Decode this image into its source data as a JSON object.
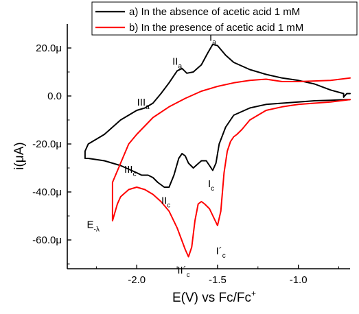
{
  "chart_data": {
    "type": "line",
    "xlabel": "E(V) vs Fc/Fc",
    "xlabel_sup": "+",
    "ylabel": "i(μA)",
    "xlim": [
      -2.43,
      -0.68
    ],
    "ylim": [
      -72,
      30
    ],
    "x_ticks": [
      -2.0,
      -1.5,
      -1.0
    ],
    "x_tick_labels": [
      "-2.0",
      "-1.5",
      "-1.0"
    ],
    "y_ticks": [
      20,
      0,
      -20,
      -40,
      -60
    ],
    "y_tick_labels": [
      "20.0μ",
      "0.0",
      "-20.0μ",
      "-40.0μ",
      "-60.0μ"
    ],
    "legend_position": "top-right",
    "series": [
      {
        "name": "a) In the absence of acetic acid 1 mM",
        "color": "#000000",
        "x": [
          -0.68,
          -0.7,
          -0.71,
          -0.72,
          -0.72,
          -0.8,
          -0.9,
          -1.0,
          -1.1,
          -1.2,
          -1.3,
          -1.4,
          -1.45,
          -1.5,
          -1.53,
          -1.56,
          -1.6,
          -1.65,
          -1.69,
          -1.72,
          -1.75,
          -1.8,
          -1.85,
          -1.9,
          -1.95,
          -2.0,
          -2.05,
          -2.1,
          -2.15,
          -2.2,
          -2.25,
          -2.3,
          -2.32,
          -2.32,
          -2.3,
          -2.2,
          -2.1,
          -2.0,
          -1.97,
          -1.93,
          -1.9,
          -1.87,
          -1.83,
          -1.8,
          -1.77,
          -1.74,
          -1.72,
          -1.7,
          -1.68,
          -1.65,
          -1.6,
          -1.57,
          -1.55,
          -1.53,
          -1.51,
          -1.49,
          -1.45,
          -1.4,
          -1.3,
          -1.2,
          -1.1,
          -1.0,
          -0.9,
          -0.8,
          -0.7,
          -0.68
        ],
        "y": [
          1.0,
          1.0,
          0.3,
          -0.5,
          1.0,
          2.5,
          5.0,
          6.5,
          7.5,
          9.0,
          11.0,
          14.0,
          17.0,
          21.0,
          21.5,
          18.0,
          13.0,
          10.0,
          9.5,
          11.5,
          10.5,
          5.5,
          1.0,
          -3.0,
          -5.0,
          -6.0,
          -8.0,
          -10.0,
          -13.0,
          -16.0,
          -18.0,
          -20.0,
          -23.0,
          -26.0,
          -26.0,
          -27.0,
          -29.0,
          -32.0,
          -33.0,
          -33.0,
          -34.0,
          -36.0,
          -38.0,
          -38.0,
          -33.0,
          -26.0,
          -24.0,
          -25.0,
          -28.0,
          -30.0,
          -27.0,
          -27.0,
          -29.0,
          -31.0,
          -28.0,
          -20.0,
          -13.0,
          -8.0,
          -5.0,
          -3.5,
          -3.0,
          -2.5,
          -2.0,
          -1.8,
          -1.5,
          -1.5
        ]
      },
      {
        "name": "b) In the presence of acetic acid 1 mM",
        "color": "#ff0000",
        "x": [
          -0.68,
          -0.8,
          -1.0,
          -1.1,
          -1.2,
          -1.3,
          -1.4,
          -1.5,
          -1.6,
          -1.7,
          -1.8,
          -1.9,
          -2.0,
          -2.05,
          -2.1,
          -2.15,
          -2.15,
          -2.12,
          -2.1,
          -2.05,
          -2.0,
          -1.95,
          -1.9,
          -1.85,
          -1.8,
          -1.75,
          -1.7,
          -1.68,
          -1.66,
          -1.64,
          -1.62,
          -1.6,
          -1.58,
          -1.55,
          -1.5,
          -1.48,
          -1.46,
          -1.44,
          -1.42,
          -1.4,
          -1.38,
          -1.35,
          -1.3,
          -1.2,
          -1.1,
          -1.0,
          -0.9,
          -0.8,
          -0.68
        ],
        "y": [
          7.5,
          6.5,
          6.0,
          6.0,
          7.0,
          6.5,
          5.5,
          4.0,
          2.0,
          -1.0,
          -4.5,
          -9.0,
          -16.0,
          -20.0,
          -28.0,
          -36.0,
          -52.0,
          -45.0,
          -42.0,
          -39.0,
          -38.0,
          -39.0,
          -41.0,
          -44.0,
          -48.0,
          -55.0,
          -64.0,
          -67.0,
          -63.0,
          -52.0,
          -45.0,
          -44.0,
          -45.0,
          -47.0,
          -54.0,
          -48.0,
          -32.0,
          -23.0,
          -19.0,
          -17.0,
          -16.0,
          -14.0,
          -10.0,
          -6.0,
          -4.5,
          -3.5,
          -3.0,
          -2.5,
          -1.5
        ]
      }
    ],
    "annotations": [
      {
        "main": "I",
        "sub": "a",
        "x": -1.53,
        "y": 23
      },
      {
        "main": "II",
        "sub": "a",
        "x": -1.75,
        "y": 13
      },
      {
        "main": "III",
        "sub": "a",
        "x": -1.96,
        "y": -4
      },
      {
        "main": "III",
        "sub": "c",
        "x": -2.04,
        "y": -32
      },
      {
        "main": "II",
        "sub": "c",
        "x": -1.82,
        "y": -45
      },
      {
        "main": "I",
        "sub": "c",
        "x": -1.54,
        "y": -38
      },
      {
        "main": "E",
        "sub": "-λ",
        "x": -2.27,
        "y": -55
      },
      {
        "main": "II´",
        "sub": "c",
        "x": -1.71,
        "y": -74
      },
      {
        "main": "I´",
        "sub": "c",
        "x": -1.48,
        "y": -66
      }
    ]
  }
}
